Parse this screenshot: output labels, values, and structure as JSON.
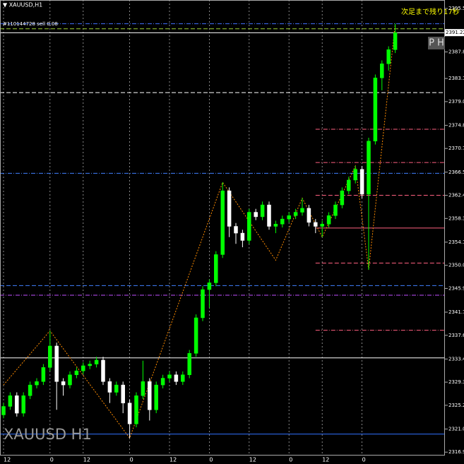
{
  "chart_data": {
    "type": "candlestick",
    "title": "▼ XAUUSD,H1",
    "watermark": "XAUUSD H1",
    "order_label": "#110144728 sell 0.08",
    "countdown": "次足まで残り17秒",
    "badge": "P H",
    "bull_color": "#00ff00",
    "bear_color": "#ffffff",
    "background": "#000000",
    "grid": true,
    "ylim": [
      2316.3,
      2397.0
    ],
    "yticks": [
      {
        "value": 2395.5,
        "label": "2395.50"
      },
      {
        "value": 2387.8,
        "label": "2387.80"
      },
      {
        "value": 2383.1,
        "label": "2383.10"
      },
      {
        "value": 2379.0,
        "label": "2379.00"
      },
      {
        "value": 2374.8,
        "label": "2374.80"
      },
      {
        "value": 2370.7,
        "label": "2370.70"
      },
      {
        "value": 2366.5,
        "label": "2366.50"
      },
      {
        "value": 2362.4,
        "label": "2362.40"
      },
      {
        "value": 2358.3,
        "label": "2358.30"
      },
      {
        "value": 2354.1,
        "label": "2354.10"
      },
      {
        "value": 2350.0,
        "label": "2350.00"
      },
      {
        "value": 2345.9,
        "label": "2345.90"
      },
      {
        "value": 2341.7,
        "label": "2341.70"
      },
      {
        "value": 2337.6,
        "label": "2337.60"
      },
      {
        "value": 2333.4,
        "label": "2333.40"
      },
      {
        "value": 2329.3,
        "label": "2329.30"
      },
      {
        "value": 2325.2,
        "label": "2325.20"
      },
      {
        "value": 2321.0,
        "label": "2321.00"
      },
      {
        "value": 2316.9,
        "label": "2316.90"
      }
    ],
    "price_label": {
      "value": 2391.22,
      "label": "2391.22"
    },
    "categories": [
      "12",
      null,
      null,
      null,
      null,
      null,
      null,
      "0",
      null,
      null,
      null,
      null,
      "12",
      null,
      null,
      null,
      null,
      null,
      null,
      "0",
      null,
      null,
      null,
      null,
      null,
      "12",
      null,
      null,
      null,
      null,
      null,
      "0",
      null,
      null,
      null,
      null,
      null,
      "12",
      null,
      null,
      null,
      null,
      null,
      "0",
      null,
      null,
      null,
      null,
      "12",
      null,
      null,
      null,
      null,
      null,
      "0",
      null,
      null,
      null,
      null,
      null
    ],
    "candles": [
      [
        2323.5,
        2325.6,
        2322.9,
        2325.0
      ],
      [
        2325.0,
        2327.5,
        2324.4,
        2326.9
      ],
      [
        2326.9,
        2327.5,
        2323.2,
        2323.8
      ],
      [
        2323.8,
        2327.5,
        2323.2,
        2326.9
      ],
      [
        2326.9,
        2329.4,
        2326.3,
        2328.8
      ],
      [
        2328.8,
        2330.0,
        2328.2,
        2329.4
      ],
      [
        2329.4,
        2332.5,
        2328.8,
        2331.9
      ],
      [
        2331.9,
        2338.4,
        2331.3,
        2335.7
      ],
      [
        2335.7,
        2336.3,
        2324.4,
        2329.4
      ],
      [
        2329.4,
        2330.0,
        2326.9,
        2328.8
      ],
      [
        2328.8,
        2331.2,
        2328.2,
        2330.6
      ],
      [
        2330.6,
        2331.9,
        2330.0,
        2331.3
      ],
      [
        2331.3,
        2332.8,
        2330.7,
        2332.2
      ],
      [
        2332.2,
        2333.1,
        2331.6,
        2332.5
      ],
      [
        2332.5,
        2333.8,
        2331.9,
        2333.2
      ],
      [
        2333.2,
        2333.8,
        2328.8,
        2329.4
      ],
      [
        2329.4,
        2330.0,
        2325.6,
        2327.5
      ],
      [
        2327.5,
        2329.4,
        2326.9,
        2328.8
      ],
      [
        2328.8,
        2329.4,
        2323.8,
        2325.6
      ],
      [
        2325.6,
        2326.2,
        2319.4,
        2321.9
      ],
      [
        2321.9,
        2327.5,
        2321.3,
        2326.9
      ],
      [
        2326.9,
        2333.1,
        2326.3,
        2329.4
      ],
      [
        2329.4,
        2330.0,
        2322.5,
        2324.4
      ],
      [
        2324.4,
        2329.4,
        2323.8,
        2328.8
      ],
      [
        2328.8,
        2330.6,
        2328.2,
        2330.0
      ],
      [
        2330.0,
        2331.2,
        2329.4,
        2330.6
      ],
      [
        2330.6,
        2331.2,
        2328.8,
        2329.4
      ],
      [
        2329.4,
        2331.2,
        2328.8,
        2330.6
      ],
      [
        2330.6,
        2335.0,
        2330.0,
        2334.4
      ],
      [
        2334.4,
        2341.3,
        2333.8,
        2340.7
      ],
      [
        2340.7,
        2346.3,
        2340.1,
        2345.7
      ],
      [
        2345.7,
        2347.5,
        2342.5,
        2346.9
      ],
      [
        2346.9,
        2352.5,
        2346.3,
        2351.9
      ],
      [
        2351.9,
        2364.7,
        2351.3,
        2363.2
      ],
      [
        2363.2,
        2363.8,
        2355.0,
        2356.9
      ],
      [
        2356.9,
        2357.5,
        2353.8,
        2355.7
      ],
      [
        2355.7,
        2356.3,
        2353.2,
        2354.4
      ],
      [
        2354.4,
        2360.0,
        2353.8,
        2359.4
      ],
      [
        2359.4,
        2360.0,
        2358.0,
        2358.6
      ],
      [
        2358.6,
        2361.3,
        2358.0,
        2360.7
      ],
      [
        2360.7,
        2361.3,
        2356.3,
        2356.9
      ],
      [
        2356.9,
        2357.9,
        2355.7,
        2357.3
      ],
      [
        2357.3,
        2358.8,
        2356.7,
        2358.2
      ],
      [
        2358.2,
        2359.4,
        2357.6,
        2358.8
      ],
      [
        2358.8,
        2360.0,
        2358.2,
        2359.4
      ],
      [
        2359.4,
        2361.9,
        2358.8,
        2360.1
      ],
      [
        2360.1,
        2360.7,
        2356.9,
        2357.6
      ],
      [
        2357.6,
        2358.2,
        2355.7,
        2356.9
      ],
      [
        2356.9,
        2357.9,
        2355.0,
        2357.3
      ],
      [
        2357.3,
        2359.4,
        2356.7,
        2358.8
      ],
      [
        2358.8,
        2361.3,
        2358.2,
        2360.7
      ],
      [
        2360.7,
        2363.8,
        2360.1,
        2363.2
      ],
      [
        2363.2,
        2365.7,
        2362.6,
        2365.1
      ],
      [
        2365.1,
        2367.6,
        2364.5,
        2367.0
      ],
      [
        2367.0,
        2367.6,
        2361.9,
        2362.6
      ],
      [
        2362.6,
        2372.6,
        2349.2,
        2372.0
      ],
      [
        2372.0,
        2383.8,
        2371.4,
        2383.2
      ],
      [
        2383.2,
        2386.3,
        2381.0,
        2385.7
      ],
      [
        2385.7,
        2388.8,
        2384.5,
        2388.2
      ],
      [
        2388.2,
        2392.8,
        2387.6,
        2391.2
      ]
    ],
    "zigzag": {
      "color": "#ff8c00",
      "points": [
        [
          0,
          2328.8
        ],
        [
          7,
          2338.4
        ],
        [
          19,
          2319.4
        ],
        [
          33,
          2364.7
        ],
        [
          41,
          2350.9
        ],
        [
          45,
          2361.9
        ],
        [
          48,
          2355.0
        ],
        [
          53,
          2367.6
        ],
        [
          55,
          2349.2
        ],
        [
          59,
          2392.8
        ]
      ]
    },
    "levels": [
      {
        "value": 2392.8,
        "color": "#4070ff",
        "style": "dashdot",
        "start": 0
      },
      {
        "value": 2391.9,
        "color": "#9acd32",
        "style": "dashed",
        "start": 0
      },
      {
        "value": 2391.2,
        "color": "#ffffff",
        "style": "solid",
        "start": 0
      },
      {
        "value": 2380.6,
        "color": "#ffffff",
        "style": "dashed",
        "start": 0
      },
      {
        "value": 2366.3,
        "color": "#4080ff",
        "style": "dashdot",
        "start": 0
      },
      {
        "value": 2346.4,
        "color": "#4080ff",
        "style": "dashed",
        "start": 0
      },
      {
        "value": 2344.7,
        "color": "#c050ff",
        "style": "dashdot",
        "start": 0
      },
      {
        "value": 2333.6,
        "color": "#ffffff",
        "style": "solid",
        "start": 0
      },
      {
        "value": 2320.1,
        "color": "#3070ff",
        "style": "solid",
        "start": 0
      },
      {
        "value": 2374.1,
        "color": "#ff6080",
        "style": "dashdot",
        "start": 47
      },
      {
        "value": 2368.2,
        "color": "#ff6080",
        "style": "dashdot",
        "start": 47
      },
      {
        "value": 2362.4,
        "color": "#ff6080",
        "style": "dashed",
        "start": 47
      },
      {
        "value": 2356.6,
        "color": "#ff6080",
        "style": "solid",
        "start": 47
      },
      {
        "value": 2350.4,
        "color": "#ff6080",
        "style": "dashed",
        "start": 47
      },
      {
        "value": 2338.5,
        "color": "#ff6080",
        "style": "dashdot",
        "start": 47
      }
    ]
  }
}
